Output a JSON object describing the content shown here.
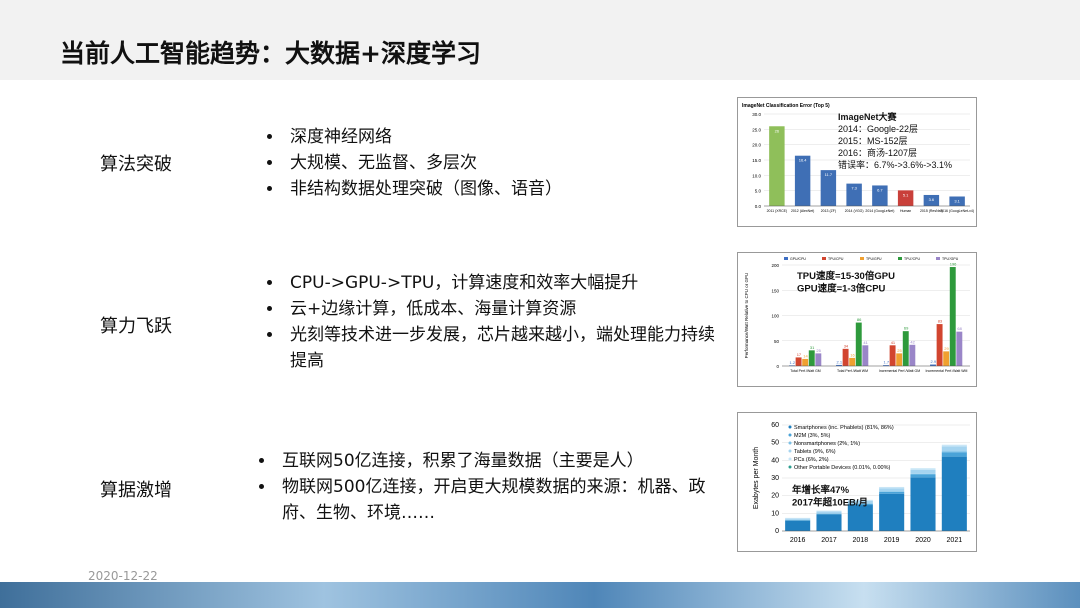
{
  "header": {
    "title": "当前人工智能趋势：大数据+深度学习"
  },
  "rows": [
    {
      "label": "算法突破",
      "bullets": [
        "深度神经网络",
        "大规模、无监督、多层次",
        "非结构数据处理突破（图像、语音）"
      ]
    },
    {
      "label": "算力飞跃",
      "bullets": [
        "CPU->GPU->TPU，计算速度和效率大幅提升",
        "云+边缘计算，低成本、海量计算资源",
        "光刻等技术进一步发展，芯片越来越小，端处理能力持续提高"
      ]
    },
    {
      "label": "算据激增",
      "bullets": [
        "互联网50亿连接，积累了海量数据（主要是人）",
        "物联网500亿连接，开启更大规模数据的来源：机器、政府、生物、环境……"
      ]
    }
  ],
  "footer": {
    "date": "2020-12-22"
  },
  "figures": [
    {
      "chart_data": {
        "type": "bar",
        "title": "ImageNet Classification Error (Top 5)",
        "annotations": [
          "ImageNet大赛",
          "2014：Google-22层",
          "2015：MS-152层",
          "2016：商汤-1207层",
          "错误率：6.7%->3.6%->3.1%"
        ],
        "categories": [
          "2011 (XRCE)",
          "2012 (AlexNet)",
          "2013 (ZF)",
          "2014 (VGG)",
          "2014 (GoogLeNet)",
          "Human",
          "2015 (ResNet)",
          "2016 (GoogLeNet-v4)"
        ],
        "values": [
          26.0,
          16.4,
          11.7,
          7.3,
          6.7,
          5.1,
          3.6,
          3.1
        ],
        "colors": [
          "#8fbf5a",
          "#3f6fb5",
          "#3f6fb5",
          "#3f6fb5",
          "#3f6fb5",
          "#c9403a",
          "#3f6fb5",
          "#3f6fb5"
        ],
        "ylim": [
          0,
          30
        ],
        "yticks": [
          {
            "value": 0,
            "label": "0.0"
          },
          {
            "value": 5,
            "label": "5.0"
          },
          {
            "value": 10,
            "label": "10.0"
          },
          {
            "value": 15,
            "label": "15.0"
          },
          {
            "value": 20,
            "label": "20.0"
          },
          {
            "value": 25,
            "label": "25.0"
          },
          {
            "value": 30,
            "label": "30.0"
          }
        ],
        "value_labels_shown": true
      }
    },
    {
      "chart_data": {
        "type": "grouped-bar",
        "annotations": [
          "TPU速度=15-30倍GPU",
          "GPU速度=1-3倍CPU"
        ],
        "y_label": "Performance/Watt Relative to CPU or GPU",
        "categories": [
          "Total Perf./Watt GM",
          "Total Perf./Watt WM",
          "Incremental Perf./Watt GM",
          "Incremental Perf./Watt WM"
        ],
        "series": [
          {
            "name": "GPU/CPU",
            "color": "#3d6fc4",
            "values": [
              1.2,
              2.1,
              1.7,
              2.9
            ]
          },
          {
            "name": "TPU/CPU",
            "color": "#d2452f",
            "values": [
              17,
              34,
              41,
              83
            ]
          },
          {
            "name": "TPU/GPU",
            "color": "#f0a030",
            "values": [
              14,
              16,
              25,
              29
            ]
          },
          {
            "name": "TPU'/CPU",
            "color": "#2e9a3c",
            "values": [
              31,
              86,
              69,
              196
            ]
          },
          {
            "name": "TPU'/GPU",
            "color": "#9a86c8",
            "values": [
              25,
              41,
              42,
              68
            ]
          }
        ],
        "ylim": [
          0,
          200
        ],
        "yticks": [
          0,
          50,
          100,
          150,
          200
        ]
      }
    },
    {
      "chart_data": {
        "type": "stacked-bar",
        "annotations": [
          "年增长率47%",
          "2017年超10EB/月"
        ],
        "y_label": "Exabytes per Month",
        "categories": [
          "2016",
          "2017",
          "2018",
          "2019",
          "2020",
          "2021"
        ],
        "series": [
          {
            "name": "Smartphones (inc. Phablets) (81%, 86%)",
            "color": "#1f7fbf",
            "values": [
              5.9,
              9.4,
              14.7,
              21.1,
              30.4,
              42.1
            ]
          },
          {
            "name": "M2M (3%, 5%)",
            "color": "#4aa3d8",
            "values": [
              0.2,
              0.4,
              0.6,
              1.0,
              1.6,
              2.5
            ]
          },
          {
            "name": "Nonsmartphones (2%, 1%)",
            "color": "#7cc0e6",
            "values": [
              0.2,
              0.2,
              0.3,
              0.3,
              0.4,
              0.4
            ]
          },
          {
            "name": "Tablets (9%, 6%)",
            "color": "#a5d4f0",
            "values": [
              0.7,
              1.0,
              1.4,
              1.8,
              2.3,
              2.9
            ]
          },
          {
            "name": "PCs (6%, 2%)",
            "color": "#c9e6f7",
            "values": [
              0.4,
              0.5,
              0.6,
              0.7,
              0.8,
              0.9
            ]
          },
          {
            "name": "Other Portable Devices (0.01%, 0.00%)",
            "color": "#2b9e8f",
            "values": [
              0.01,
              0.01,
              0.01,
              0.01,
              0.01,
              0.01
            ]
          }
        ],
        "ylim": [
          0,
          60
        ],
        "yticks": [
          0,
          10,
          20,
          30,
          40,
          50,
          60
        ]
      }
    }
  ]
}
